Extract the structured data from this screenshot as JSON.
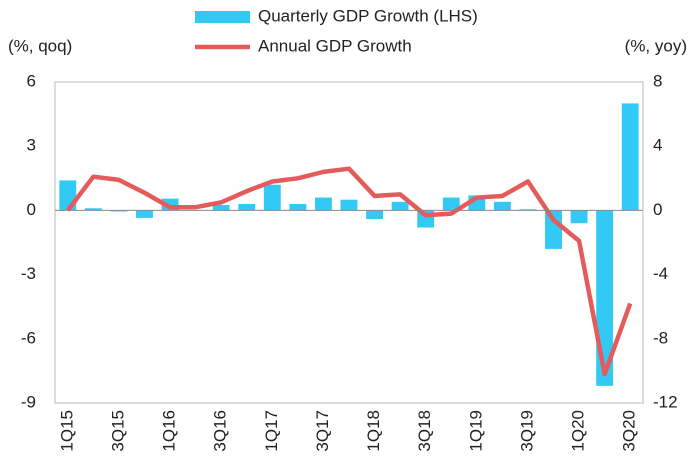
{
  "chart_data": {
    "type": "bar_line",
    "y_label": "(%, qoq)",
    "y2_label": "(%, yoy)",
    "categories": [
      "1Q15",
      null,
      "3Q15",
      null,
      "1Q16",
      null,
      "3Q16",
      null,
      "1Q17",
      null,
      "3Q17",
      null,
      "1Q18",
      null,
      "3Q18",
      null,
      "1Q19",
      null,
      "3Q19",
      null,
      "1Q20",
      null,
      "3Q20"
    ],
    "series": [
      {
        "name": "Quarterly GDP Growth (LHS)",
        "type": "bar",
        "color": "#33c9f5",
        "values": [
          1.4,
          0.1,
          -0.05,
          -0.35,
          0.55,
          0.0,
          0.25,
          0.3,
          1.2,
          0.3,
          0.6,
          0.5,
          -0.4,
          0.4,
          -0.8,
          0.6,
          0.7,
          0.4,
          0.05,
          -1.8,
          -0.6,
          -8.2,
          5.0
        ]
      },
      {
        "name": "Annual GDP Growth",
        "type": "line",
        "axis": "y2",
        "color": "#e35b5b",
        "values": [
          0,
          2.1,
          1.9,
          1.1,
          0.2,
          0.2,
          0.5,
          1.2,
          1.8,
          2.0,
          2.4,
          2.6,
          0.9,
          1.0,
          -0.3,
          -0.2,
          0.8,
          0.9,
          1.8,
          -0.6,
          -1.9,
          -10.2,
          -5.8
        ]
      }
    ],
    "ylim": [
      -9,
      6
    ],
    "yticks": [
      6,
      3,
      0,
      -3,
      -6,
      -9
    ],
    "y2lim": [
      -12,
      8
    ],
    "y2ticks": [
      8,
      4,
      0,
      -4,
      -8,
      -12
    ]
  }
}
